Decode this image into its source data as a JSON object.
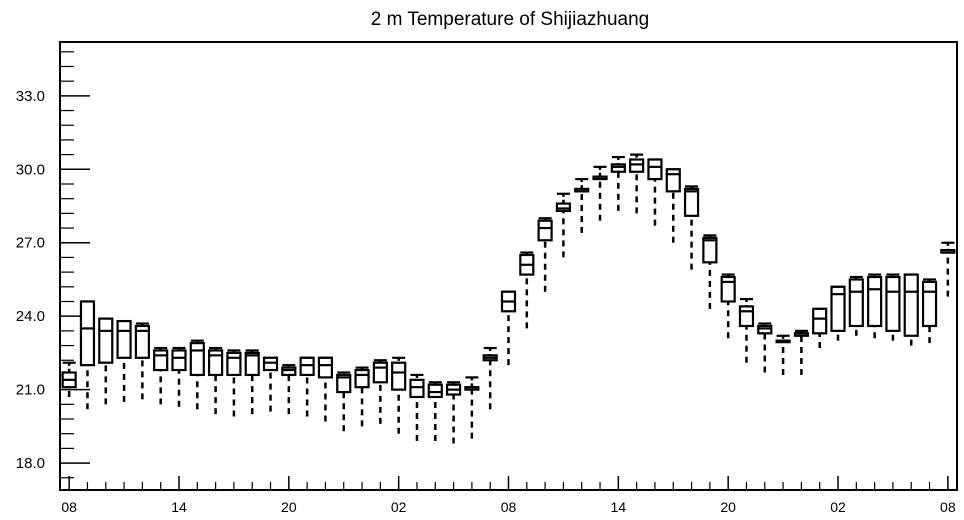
{
  "chart_data": {
    "type": "boxplot",
    "title": "2 m Temperature of Shijiazhuang",
    "xlabel": "",
    "ylabel": "",
    "ylim": [
      16.9,
      35.2
    ],
    "yticks": [
      "18.0",
      "21.0",
      "24.0",
      "27.0",
      "30.0",
      "33.0"
    ],
    "xlim": [
      -0.5,
      48.5
    ],
    "xticks": [
      {
        "index": 0,
        "label": "08"
      },
      {
        "index": 6,
        "label": "14"
      },
      {
        "index": 12,
        "label": "20"
      },
      {
        "index": 18,
        "label": "02"
      },
      {
        "index": 24,
        "label": "08"
      },
      {
        "index": 30,
        "label": "14"
      },
      {
        "index": 36,
        "label": "20"
      },
      {
        "index": 42,
        "label": "02"
      },
      {
        "index": 48,
        "label": "08"
      }
    ],
    "boxes": [
      {
        "index": 0,
        "min": 20.7,
        "q1": 21.1,
        "median": 21.4,
        "q3": 21.7,
        "max": 22.1
      },
      {
        "index": 1,
        "min": 20.2,
        "q1": 22.0,
        "median": 23.5,
        "q3": 24.6,
        "max": 24.6
      },
      {
        "index": 2,
        "min": 20.4,
        "q1": 22.1,
        "median": 23.4,
        "q3": 23.9,
        "max": 23.9
      },
      {
        "index": 3,
        "min": 20.5,
        "q1": 22.3,
        "median": 23.4,
        "q3": 23.8,
        "max": 23.8
      },
      {
        "index": 4,
        "min": 20.6,
        "q1": 22.3,
        "median": 23.4,
        "q3": 23.6,
        "max": 23.7
      },
      {
        "index": 5,
        "min": 20.4,
        "q1": 21.8,
        "median": 22.4,
        "q3": 22.6,
        "max": 22.7
      },
      {
        "index": 6,
        "min": 20.3,
        "q1": 21.8,
        "median": 22.3,
        "q3": 22.6,
        "max": 22.7
      },
      {
        "index": 7,
        "min": 20.2,
        "q1": 21.6,
        "median": 22.6,
        "q3": 22.9,
        "max": 23.0
      },
      {
        "index": 8,
        "min": 20.0,
        "q1": 21.6,
        "median": 22.4,
        "q3": 22.6,
        "max": 22.7
      },
      {
        "index": 9,
        "min": 19.9,
        "q1": 21.6,
        "median": 22.3,
        "q3": 22.5,
        "max": 22.6
      },
      {
        "index": 10,
        "min": 20.0,
        "q1": 21.6,
        "median": 22.4,
        "q3": 22.5,
        "max": 22.6
      },
      {
        "index": 11,
        "min": 20.1,
        "q1": 21.8,
        "median": 22.1,
        "q3": 22.3,
        "max": 22.3
      },
      {
        "index": 12,
        "min": 20.0,
        "q1": 21.6,
        "median": 21.8,
        "q3": 21.9,
        "max": 22.0
      },
      {
        "index": 13,
        "min": 19.9,
        "q1": 21.6,
        "median": 22.0,
        "q3": 22.3,
        "max": 22.3
      },
      {
        "index": 14,
        "min": 19.7,
        "q1": 21.5,
        "median": 22.0,
        "q3": 22.3,
        "max": 22.3
      },
      {
        "index": 15,
        "min": 19.3,
        "q1": 20.9,
        "median": 21.5,
        "q3": 21.6,
        "max": 21.7
      },
      {
        "index": 16,
        "min": 19.5,
        "q1": 21.1,
        "median": 21.6,
        "q3": 21.8,
        "max": 21.9
      },
      {
        "index": 17,
        "min": 19.6,
        "q1": 21.3,
        "median": 21.9,
        "q3": 22.1,
        "max": 22.2
      },
      {
        "index": 18,
        "min": 19.2,
        "q1": 21.0,
        "median": 21.7,
        "q3": 22.1,
        "max": 22.3
      },
      {
        "index": 19,
        "min": 18.9,
        "q1": 20.7,
        "median": 21.1,
        "q3": 21.4,
        "max": 21.6
      },
      {
        "index": 20,
        "min": 18.9,
        "q1": 20.7,
        "median": 20.9,
        "q3": 21.2,
        "max": 21.3
      },
      {
        "index": 21,
        "min": 18.8,
        "q1": 20.8,
        "median": 21.0,
        "q3": 21.2,
        "max": 21.3
      },
      {
        "index": 22,
        "min": 19.0,
        "q1": 21.0,
        "median": 21.1,
        "q3": 21.1,
        "max": 21.5
      },
      {
        "index": 23,
        "min": 20.2,
        "q1": 22.2,
        "median": 22.3,
        "q3": 22.4,
        "max": 22.7
      },
      {
        "index": 24,
        "min": 22.0,
        "q1": 24.2,
        "median": 24.6,
        "q3": 25.0,
        "max": 25.0
      },
      {
        "index": 25,
        "min": 23.5,
        "q1": 25.7,
        "median": 26.1,
        "q3": 26.5,
        "max": 26.6
      },
      {
        "index": 26,
        "min": 25.0,
        "q1": 27.1,
        "median": 27.6,
        "q3": 27.9,
        "max": 28.0
      },
      {
        "index": 27,
        "min": 26.4,
        "q1": 28.3,
        "median": 28.4,
        "q3": 28.6,
        "max": 29.0
      },
      {
        "index": 28,
        "min": 27.4,
        "q1": 29.1,
        "median": 29.1,
        "q3": 29.2,
        "max": 29.6
      },
      {
        "index": 29,
        "min": 27.9,
        "q1": 29.6,
        "median": 29.7,
        "q3": 29.7,
        "max": 30.1
      },
      {
        "index": 30,
        "min": 28.3,
        "q1": 29.9,
        "median": 30.1,
        "q3": 30.2,
        "max": 30.5
      },
      {
        "index": 31,
        "min": 28.2,
        "q1": 29.9,
        "median": 30.2,
        "q3": 30.4,
        "max": 30.6
      },
      {
        "index": 32,
        "min": 27.7,
        "q1": 29.6,
        "median": 30.1,
        "q3": 30.4,
        "max": 30.4
      },
      {
        "index": 33,
        "min": 27.0,
        "q1": 29.1,
        "median": 29.8,
        "q3": 30.0,
        "max": 30.0
      },
      {
        "index": 34,
        "min": 25.9,
        "q1": 28.1,
        "median": 29.1,
        "q3": 29.2,
        "max": 29.3
      },
      {
        "index": 35,
        "min": 24.3,
        "q1": 26.2,
        "median": 27.1,
        "q3": 27.2,
        "max": 27.3
      },
      {
        "index": 36,
        "min": 23.1,
        "q1": 24.6,
        "median": 25.4,
        "q3": 25.6,
        "max": 25.7
      },
      {
        "index": 37,
        "min": 22.1,
        "q1": 23.6,
        "median": 24.2,
        "q3": 24.4,
        "max": 24.7
      },
      {
        "index": 38,
        "min": 21.7,
        "q1": 23.3,
        "median": 23.5,
        "q3": 23.6,
        "max": 23.7
      },
      {
        "index": 39,
        "min": 21.6,
        "q1": 23.0,
        "median": 23.0,
        "q3": 23.0,
        "max": 23.2
      },
      {
        "index": 40,
        "min": 21.6,
        "q1": 23.2,
        "median": 23.3,
        "q3": 23.3,
        "max": 23.4
      },
      {
        "index": 41,
        "min": 22.7,
        "q1": 23.3,
        "median": 23.9,
        "q3": 24.3,
        "max": 24.3
      },
      {
        "index": 42,
        "min": 23.0,
        "q1": 23.4,
        "median": 24.9,
        "q3": 25.2,
        "max": 25.2
      },
      {
        "index": 43,
        "min": 23.2,
        "q1": 23.6,
        "median": 25.0,
        "q3": 25.5,
        "max": 25.6
      },
      {
        "index": 44,
        "min": 23.1,
        "q1": 23.6,
        "median": 25.1,
        "q3": 25.6,
        "max": 25.7
      },
      {
        "index": 45,
        "min": 23.0,
        "q1": 23.4,
        "median": 25.0,
        "q3": 25.6,
        "max": 25.7
      },
      {
        "index": 46,
        "min": 22.8,
        "q1": 23.2,
        "median": 25.0,
        "q3": 25.7,
        "max": 25.7
      },
      {
        "index": 47,
        "min": 22.9,
        "q1": 23.6,
        "median": 25.0,
        "q3": 25.4,
        "max": 25.5
      },
      {
        "index": 48,
        "min": 24.8,
        "q1": 26.6,
        "median": 26.6,
        "q3": 26.7,
        "max": 27.0
      }
    ]
  }
}
